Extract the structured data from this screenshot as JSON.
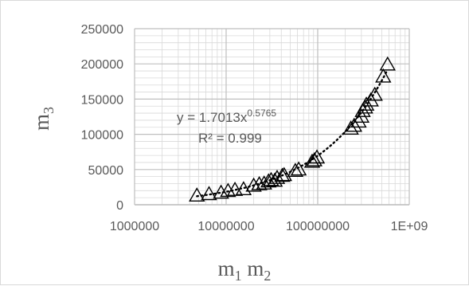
{
  "chart_data": {
    "type": "scatter",
    "x_scale": "log",
    "x_ticks": [
      1000000,
      10000000,
      100000000,
      1000000000
    ],
    "x_tick_labels": [
      "1000000",
      "10000000",
      "100000000",
      "1E+09"
    ],
    "xlim": [
      1000000,
      1000000000
    ],
    "y_ticks": [
      0,
      50000,
      100000,
      150000,
      200000,
      250000
    ],
    "y_tick_labels": [
      "0",
      "50000",
      "100000",
      "150000",
      "200000",
      "250000"
    ],
    "ylim": [
      0,
      250000
    ],
    "grid": true,
    "xlabel": {
      "base1": "m",
      "sub1": "1",
      "base2": "m",
      "sub2": "2"
    },
    "ylabel": {
      "base": "m",
      "sub": "3"
    },
    "marker": "open-triangle",
    "marker_color": "#000000",
    "grid_color": "#d9d9d9",
    "trendline": {
      "type": "power",
      "style": "dotted",
      "coefficient": 1.7013,
      "exponent": 0.5765,
      "equation_text": "y = 1.7013x",
      "equation_exponent": "0.5765",
      "r2_text": "R² = 0.999"
    },
    "points": [
      [
        4800000,
        13000
      ],
      [
        6500000,
        15000
      ],
      [
        8800000,
        17000
      ],
      [
        10500000,
        19500
      ],
      [
        12500000,
        21000
      ],
      [
        15500000,
        22000
      ],
      [
        20000000,
        27000
      ],
      [
        23000000,
        29000
      ],
      [
        26000000,
        30000
      ],
      [
        29000000,
        33000
      ],
      [
        31000000,
        35000
      ],
      [
        34000000,
        34000
      ],
      [
        36000000,
        38000
      ],
      [
        41000000,
        41000
      ],
      [
        43000000,
        42000
      ],
      [
        57000000,
        48000
      ],
      [
        62000000,
        50000
      ],
      [
        87000000,
        61000
      ],
      [
        92000000,
        63000
      ],
      [
        98000000,
        67000
      ],
      [
        230000000,
        108000
      ],
      [
        250000000,
        112000
      ],
      [
        280000000,
        118000
      ],
      [
        300000000,
        125000
      ],
      [
        310000000,
        133000
      ],
      [
        330000000,
        138000
      ],
      [
        340000000,
        142000
      ],
      [
        380000000,
        148000
      ],
      [
        420000000,
        156000
      ],
      [
        520000000,
        182000
      ],
      [
        580000000,
        199000
      ]
    ]
  }
}
